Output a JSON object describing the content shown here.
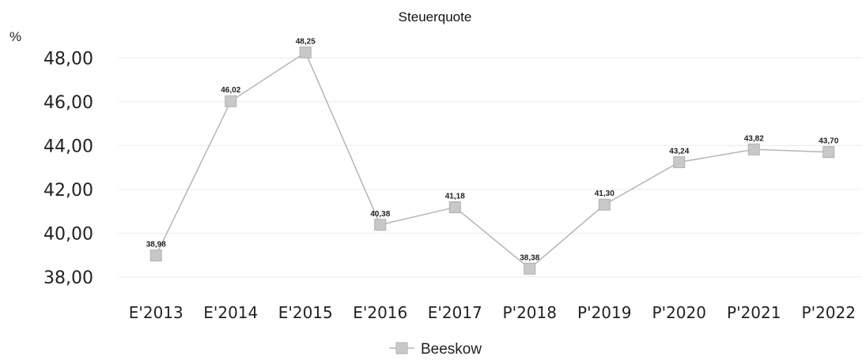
{
  "chart_data": {
    "type": "line",
    "title": "Steuerquote",
    "unit_label": "%",
    "categories": [
      "E'2013",
      "E'2014",
      "E'2015",
      "E'2016",
      "E'2017",
      "P'2018",
      "P'2019",
      "P'2020",
      "P'2021",
      "P'2022"
    ],
    "series": [
      {
        "name": "Beeskow",
        "values": [
          38.98,
          46.02,
          48.25,
          40.38,
          41.18,
          38.38,
          41.3,
          43.24,
          43.82,
          43.7
        ],
        "labels": [
          "38,98",
          "46,02",
          "48,25",
          "40,38",
          "41,18",
          "38,38",
          "41,30",
          "43,24",
          "43,82",
          "43,70"
        ],
        "line_color": "#b5b5b5",
        "marker_color": "#c8c8c8"
      }
    ],
    "yticks": [
      38,
      40,
      42,
      44,
      46,
      48
    ],
    "ytick_labels": [
      "38,00",
      "40,00",
      "42,00",
      "44,00",
      "46,00",
      "48,00"
    ],
    "ylim": [
      37.2,
      49.2
    ],
    "grid": "horizontal",
    "gridline_color": "#eaeaea",
    "legend_position": "bottom-center"
  }
}
